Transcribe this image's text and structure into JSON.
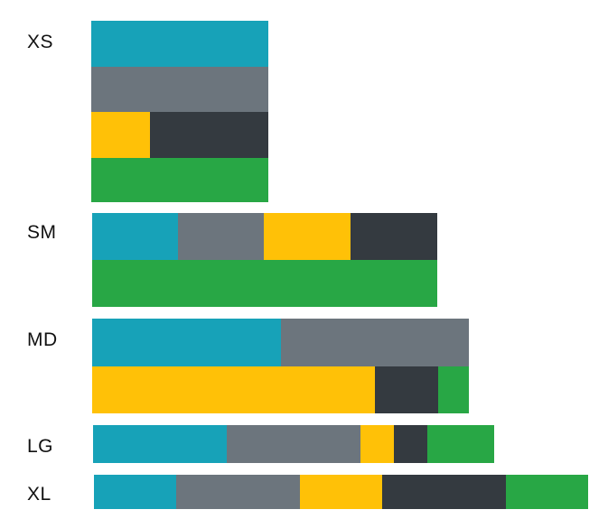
{
  "colors": {
    "teal": "#17a2b8",
    "gray": "#6c757d",
    "yellow": "#ffc107",
    "dark": "#343a40",
    "green": "#28a745"
  },
  "breakpoints": [
    {
      "label": "XS",
      "rows": [
        [
          {
            "color": "teal"
          }
        ],
        [
          {
            "color": "gray"
          }
        ],
        [
          {
            "color": "yellow"
          },
          {
            "color": "dark"
          }
        ],
        [
          {
            "color": "green"
          }
        ]
      ]
    },
    {
      "label": "SM",
      "rows": [
        [
          {
            "color": "teal"
          },
          {
            "color": "gray"
          },
          {
            "color": "yellow"
          },
          {
            "color": "dark"
          }
        ],
        [
          {
            "color": "green"
          }
        ]
      ]
    },
    {
      "label": "MD",
      "rows": [
        [
          {
            "color": "teal"
          },
          {
            "color": "gray"
          }
        ],
        [
          {
            "color": "yellow"
          },
          {
            "color": "dark"
          },
          {
            "color": "green"
          }
        ]
      ]
    },
    {
      "label": "LG",
      "rows": [
        [
          {
            "color": "teal"
          },
          {
            "color": "gray"
          },
          {
            "color": "yellow"
          },
          {
            "color": "dark"
          },
          {
            "color": "green"
          }
        ]
      ]
    },
    {
      "label": "XL",
      "rows": [
        [
          {
            "color": "teal"
          },
          {
            "color": "gray"
          },
          {
            "color": "yellow"
          },
          {
            "color": "dark"
          },
          {
            "color": "green"
          }
        ]
      ]
    }
  ]
}
